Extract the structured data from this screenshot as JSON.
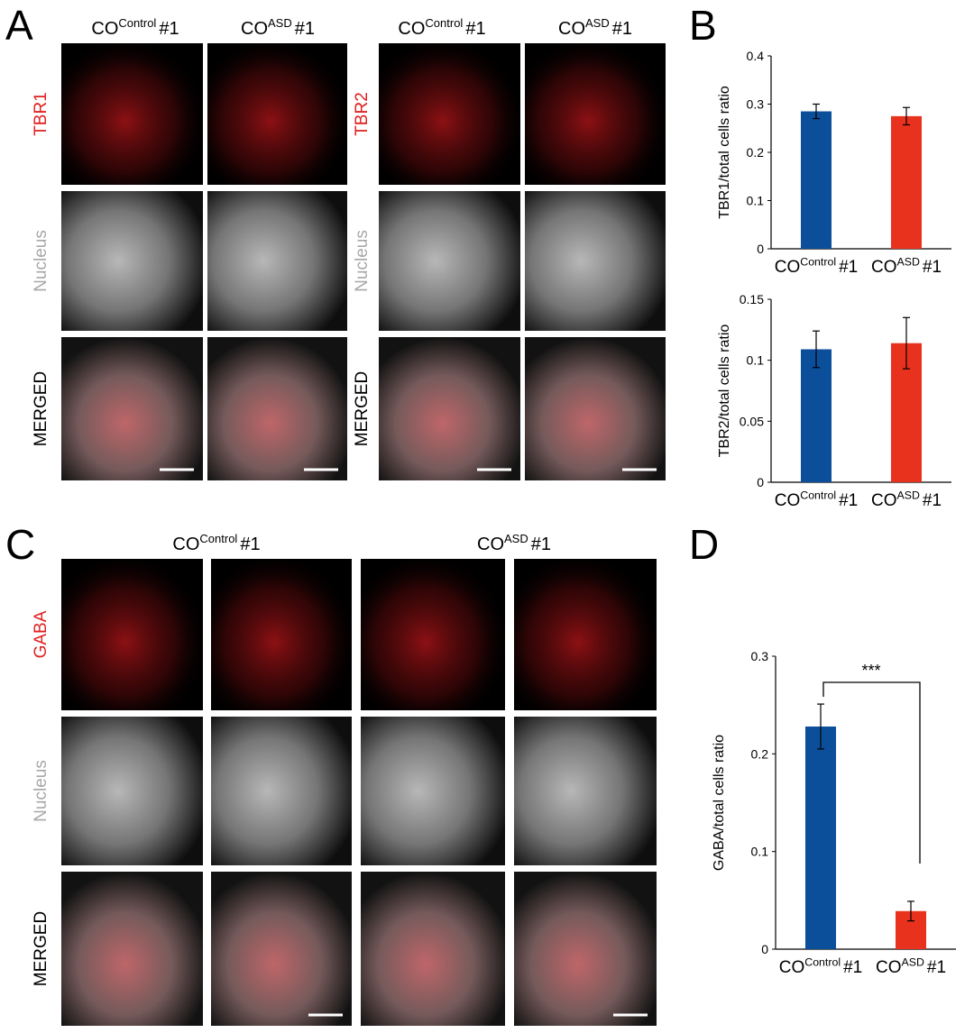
{
  "panels": [
    {
      "letter": "A",
      "groups": [
        {
          "columns": [
            [
              "CO",
              "Control",
              "#1"
            ],
            [
              "CO",
              "ASD",
              "#1"
            ]
          ],
          "rows": [
            "TBR1",
            "Nucleus",
            "MERGED"
          ]
        },
        {
          "columns": [
            [
              "CO",
              "Control",
              "#1"
            ],
            [
              "CO",
              "ASD",
              "#1"
            ]
          ],
          "rows": [
            "TBR2",
            "Nucleus",
            "MERGED"
          ]
        }
      ]
    },
    {
      "letter": "B"
    },
    {
      "letter": "C",
      "groups": [
        {
          "columns": [
            [
              "CO",
              "Control",
              "#1"
            ],
            [
              "CO",
              "ASD",
              "#1"
            ]
          ],
          "rows": [
            "GABA",
            "Nucleus",
            "MERGED"
          ]
        }
      ]
    },
    {
      "letter": "D"
    }
  ],
  "chart_data": [
    {
      "type": "bar",
      "y_label": "TBR1/total cells ratio",
      "categories": [
        [
          "CO",
          "Control",
          "#1"
        ],
        [
          "CO",
          "ASD",
          "#1"
        ]
      ],
      "values": [
        0.285,
        0.275
      ],
      "errors": [
        0.015,
        0.018
      ],
      "colors": [
        "#0b4f9a",
        "#e8321e"
      ],
      "ylim": [
        0,
        0.4
      ],
      "yticks": [
        0,
        0.1,
        0.2,
        0.3,
        0.4
      ]
    },
    {
      "type": "bar",
      "y_label": "TBR2/total cells ratio",
      "categories": [
        [
          "CO",
          "Control",
          "#1"
        ],
        [
          "CO",
          "ASD",
          "#1"
        ]
      ],
      "values": [
        0.109,
        0.114
      ],
      "errors": [
        0.015,
        0.021
      ],
      "colors": [
        "#0b4f9a",
        "#e8321e"
      ],
      "ylim": [
        0,
        0.15
      ],
      "yticks": [
        0,
        0.05,
        0.1,
        0.15
      ]
    },
    {
      "type": "bar",
      "y_label": "GABA/total cells ratio",
      "categories": [
        [
          "CO",
          "Control",
          "#1"
        ],
        [
          "CO",
          "ASD",
          "#1"
        ]
      ],
      "values": [
        0.228,
        0.039
      ],
      "errors": [
        0.023,
        0.01
      ],
      "colors": [
        "#0b4f9a",
        "#e8321e"
      ],
      "ylim": [
        0,
        0.3
      ],
      "yticks": [
        0,
        0.1,
        0.2,
        0.3
      ],
      "annotation": "***"
    }
  ]
}
